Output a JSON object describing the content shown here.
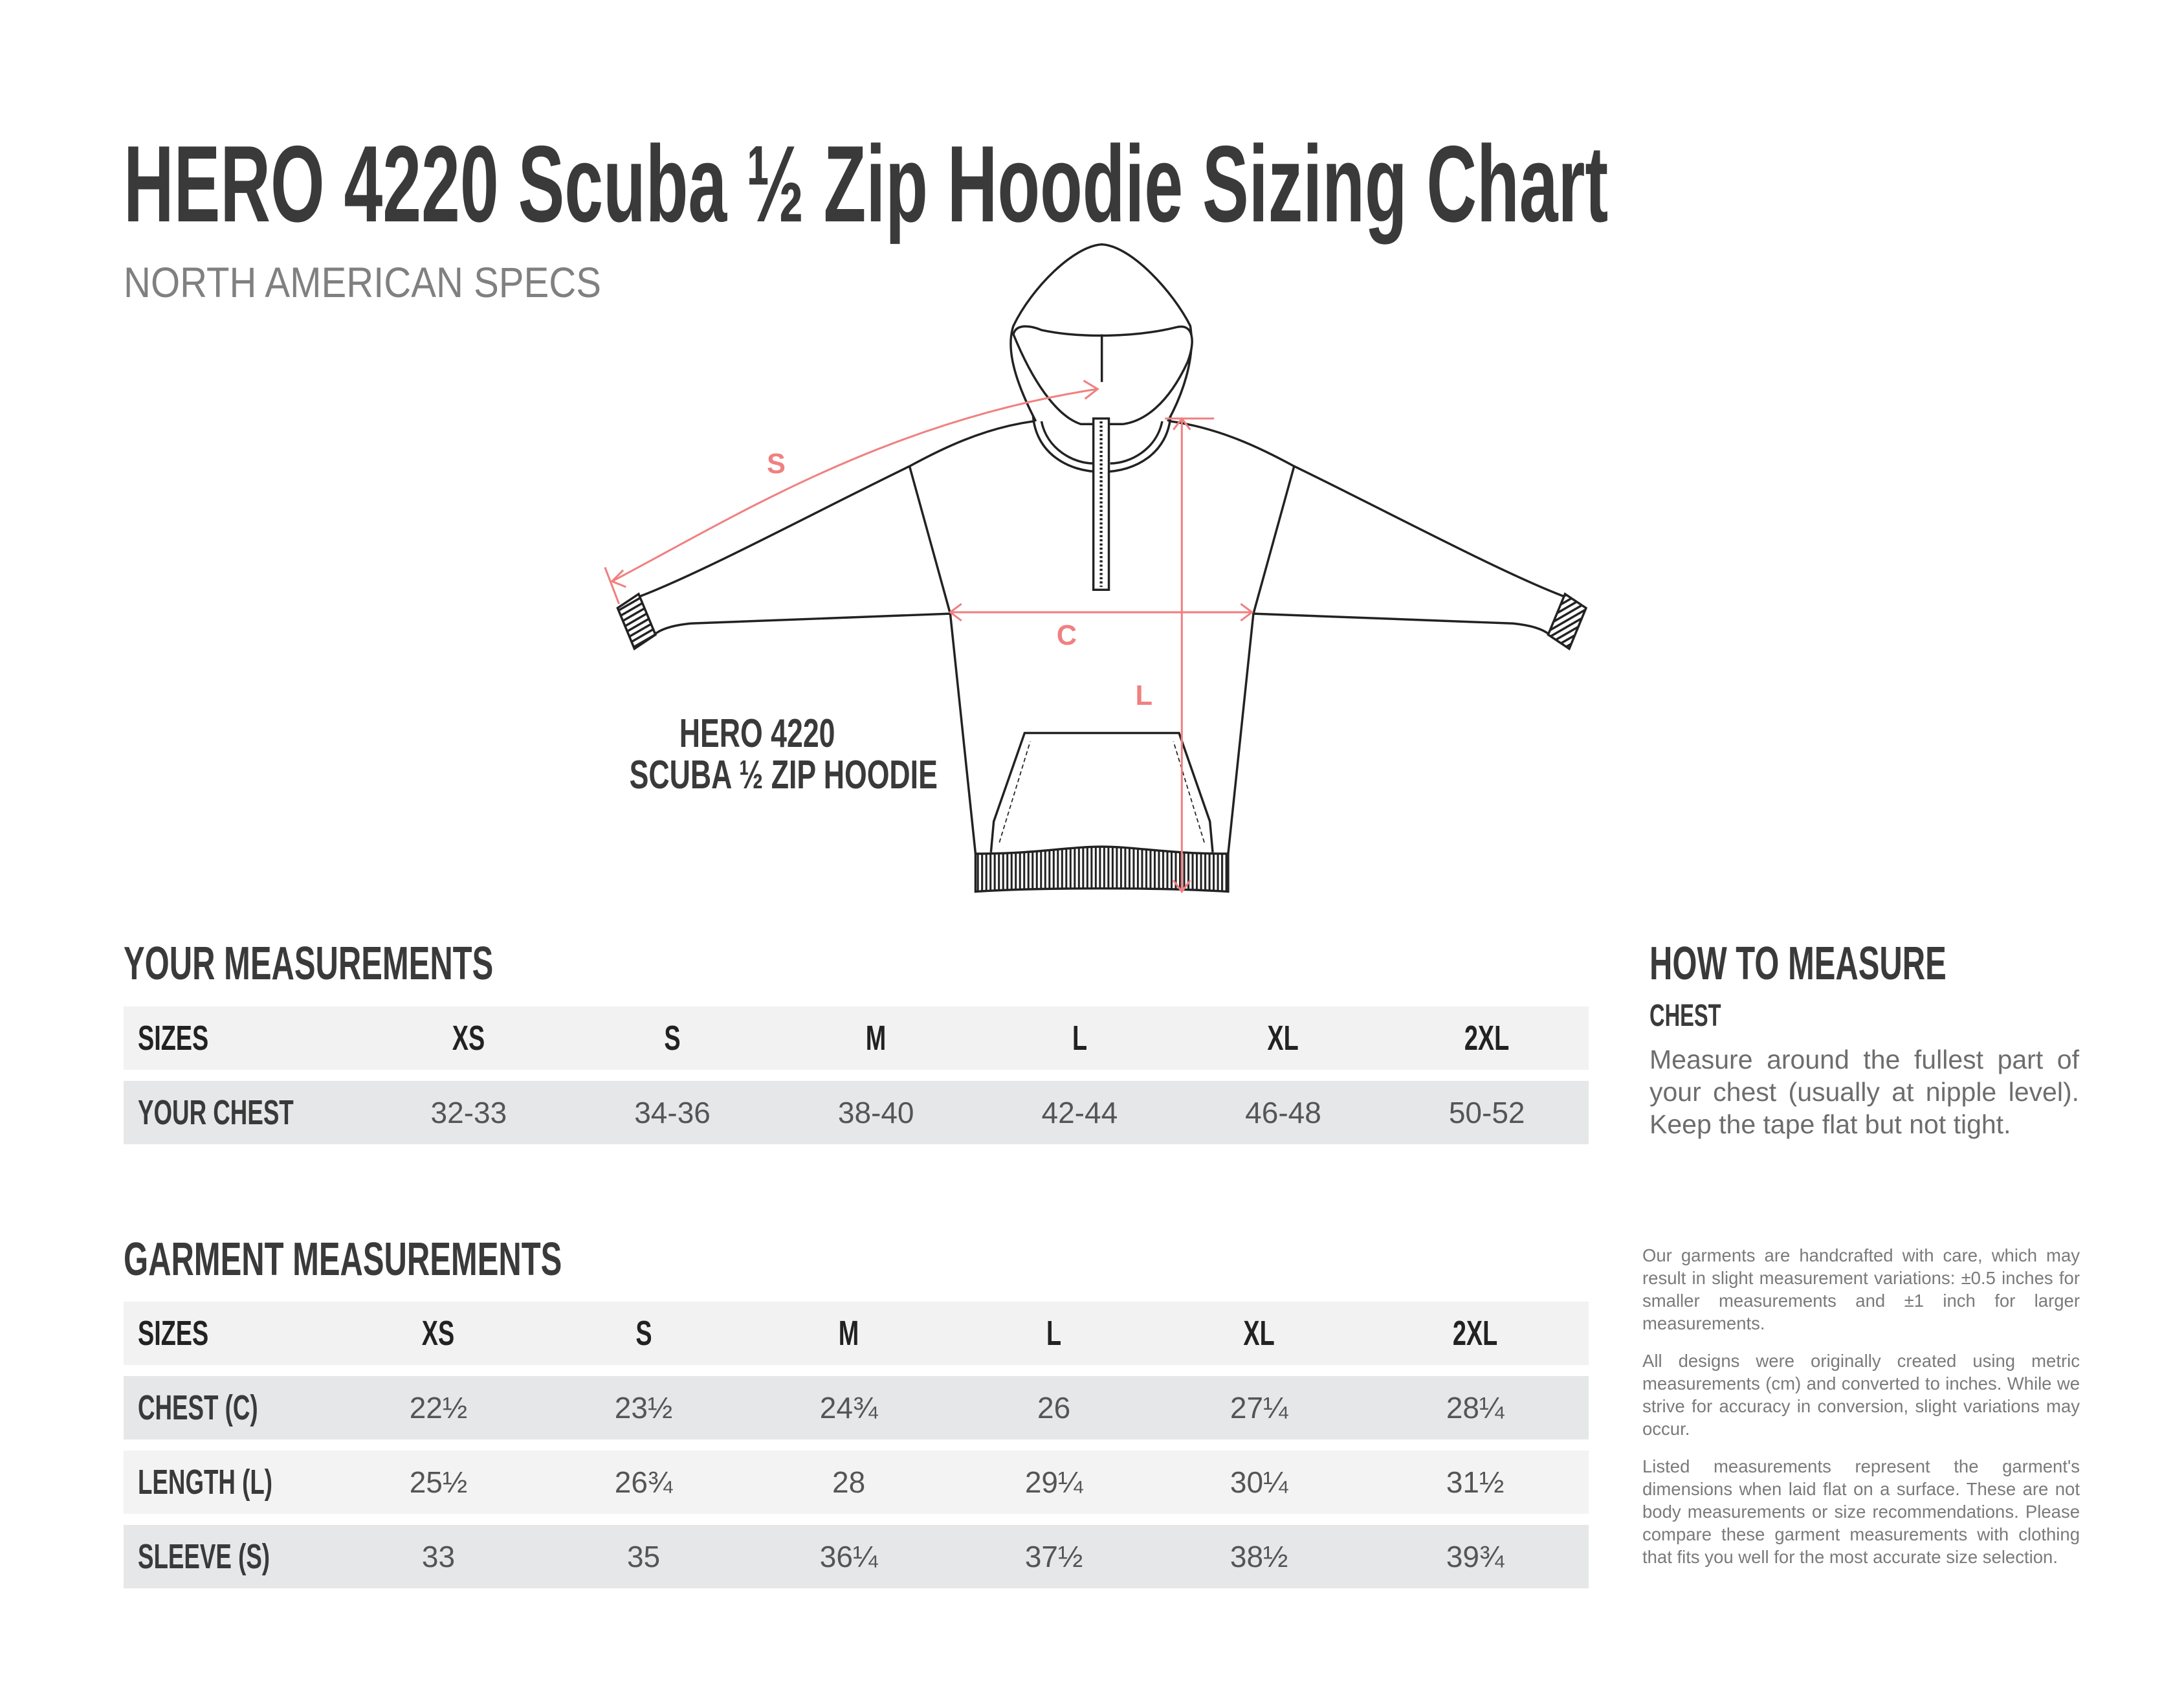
{
  "header": {
    "title": "HERO 4220 Scuba ½ Zip Hoodie Sizing Chart",
    "subtitle": "NORTH AMERICAN SPECS"
  },
  "illustration": {
    "caption_line1": "HERO 4220",
    "caption_line2": "SCUBA ½ ZIP HOODIE",
    "label_sleeve": "S",
    "label_chest": "C",
    "label_length": "L",
    "measure_color": "#f08080",
    "line_color": "#222222"
  },
  "your_measurements": {
    "heading": "YOUR MEASUREMENTS",
    "header": [
      "SIZES",
      "XS",
      "S",
      "M",
      "L",
      "XL",
      "2XL"
    ],
    "rows": [
      {
        "label": "YOUR CHEST",
        "values": [
          "32-33",
          "34-36",
          "38-40",
          "42-44",
          "46-48",
          "50-52"
        ]
      }
    ]
  },
  "garment_measurements": {
    "heading": "GARMENT MEASUREMENTS",
    "header": [
      "SIZES",
      "XS",
      "S",
      "M",
      "L",
      "XL",
      "2XL"
    ],
    "rows": [
      {
        "label": "CHEST (C)",
        "values": [
          "22½",
          "23½",
          "24¾",
          "26",
          "27¼",
          "28¼"
        ]
      },
      {
        "label": "LENGTH (L)",
        "values": [
          "25½",
          "26¾",
          "28",
          "29¼",
          "30¼",
          "31½"
        ]
      },
      {
        "label": "SLEEVE (S)",
        "values": [
          "33",
          "35",
          "36¼",
          "37½",
          "38½",
          "39¾"
        ]
      }
    ]
  },
  "how_to_measure": {
    "heading": "HOW TO MEASURE",
    "subheading": "CHEST",
    "text": "Measure around the fullest part of your chest (usually at nipple level). Keep the tape flat but not tight."
  },
  "fine_print": [
    "Our garments are handcrafted with care, which may result in slight measurement variations: ±0.5 inches for smaller measurements and ±1 inch for larger measurements.",
    "All designs were originally created using metric measurements (cm) and converted to inches. While we strive for accuracy in conversion, slight variations may occur.",
    "Listed measurements represent the garment's dimensions when laid flat on a surface. These are not body measurements or size recommendations. Please compare these garment measurements with clothing that fits you well for the most accurate size selection."
  ]
}
